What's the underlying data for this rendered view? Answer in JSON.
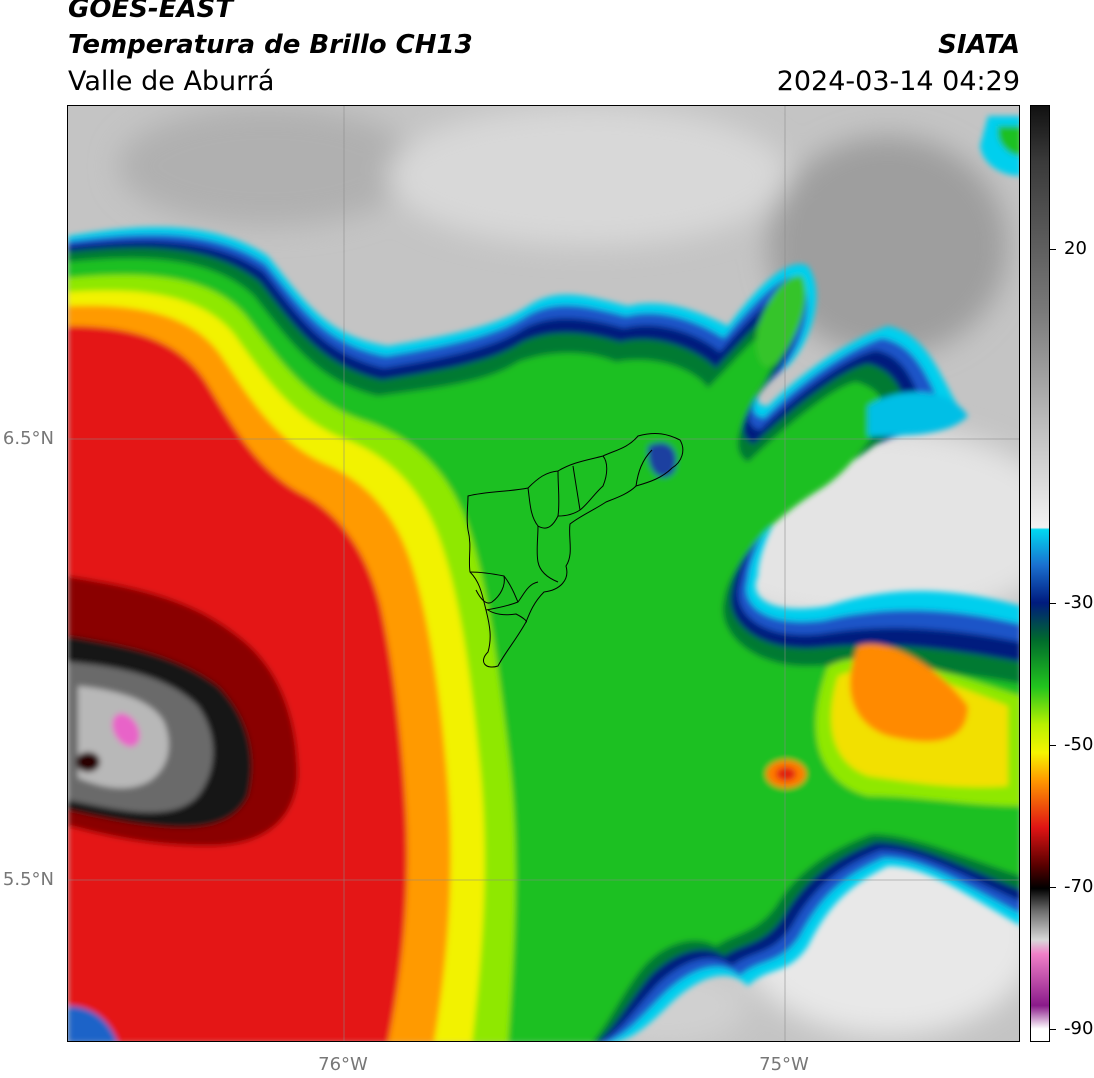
{
  "header": {
    "satellite": "GOES-EAST",
    "product": "Temperatura de Brillo CH13",
    "region": "Valle de Aburrá",
    "institution": "SIATA",
    "datetime": "2024-03-14 04:29"
  },
  "map": {
    "lat_labels": [
      "6.5°N",
      "5.5°N"
    ],
    "lon_labels": [
      "76°W",
      "75°W"
    ],
    "colors": {
      "warm_gray_light": "#e6e6e6",
      "warm_gray_dark": "#a0a0a0",
      "cyan": "#00d0f0",
      "blue": "#2060c0",
      "navy": "#001a80",
      "dark_green": "#006b2c",
      "green": "#22c41e",
      "lime": "#8fe800",
      "yellow": "#f5f500",
      "orange": "#ff9800",
      "red": "#e01414",
      "dark_red": "#7a0000",
      "black": "#111111",
      "pink": "#e864c8"
    }
  },
  "colorbar": {
    "tick_labels": [
      "20",
      "-30",
      "-50",
      "-70",
      "-90"
    ],
    "tick_values": [
      20,
      -30,
      -50,
      -70,
      -90
    ],
    "range": [
      -92,
      38
    ]
  }
}
